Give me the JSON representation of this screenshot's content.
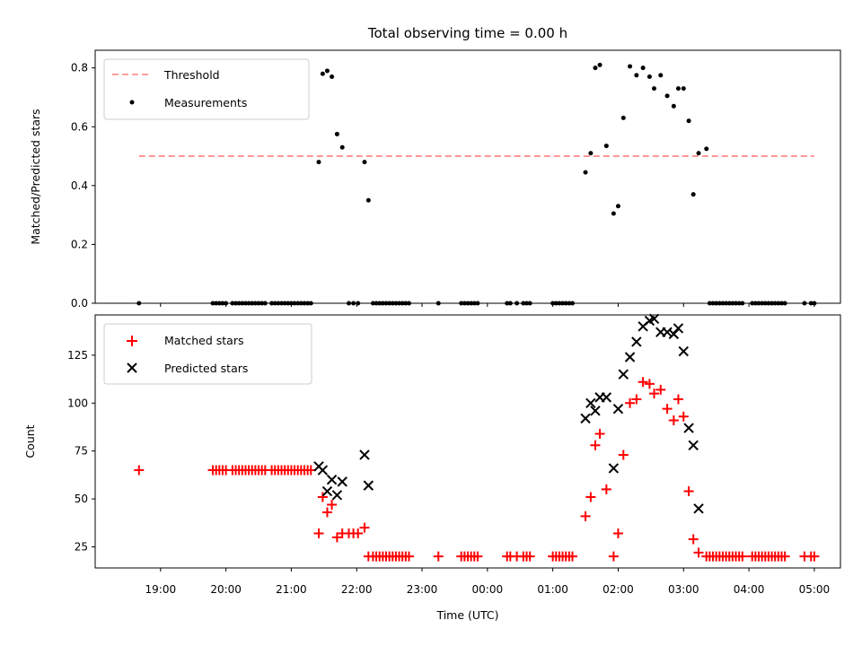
{
  "chart_data": [
    {
      "type": "scatter",
      "title": "Total observing time = 0.00 h",
      "ylabel": "Matched/Predicted stars",
      "xlabel": "",
      "xlim_hours": [
        18.0,
        29.4
      ],
      "ylim": [
        0,
        0.86
      ],
      "yticks": [
        0.0,
        0.2,
        0.4,
        0.6,
        0.8
      ],
      "ytick_labels": [
        "0.0",
        "0.2",
        "0.4",
        "0.6",
        "0.8"
      ],
      "legend_position": "top-left",
      "threshold": {
        "name": "Threshold",
        "y": 0.5,
        "x_range": [
          18.67,
          29.0
        ],
        "color": "#ff7f7f",
        "style": "dashed"
      },
      "series": [
        {
          "name": "Measurements",
          "color": "#000000",
          "marker": "dot",
          "x": [
            18.67,
            19.8,
            19.85,
            19.9,
            19.95,
            20.0,
            20.1,
            20.15,
            20.2,
            20.25,
            20.3,
            20.35,
            20.4,
            20.45,
            20.5,
            20.55,
            20.6,
            20.7,
            20.75,
            20.8,
            20.85,
            20.9,
            20.95,
            21.0,
            21.05,
            21.1,
            21.15,
            21.2,
            21.25,
            21.3,
            21.42,
            21.48,
            21.55,
            21.62,
            21.7,
            21.78,
            21.88,
            21.95,
            22.02,
            22.12,
            22.18,
            22.25,
            22.3,
            22.35,
            22.4,
            22.45,
            22.5,
            22.55,
            22.6,
            22.65,
            22.7,
            22.75,
            22.8,
            23.25,
            23.6,
            23.65,
            23.7,
            23.75,
            23.8,
            23.85,
            24.3,
            24.35,
            24.45,
            24.55,
            24.6,
            24.65,
            25.0,
            25.05,
            25.1,
            25.15,
            25.2,
            25.25,
            25.3,
            25.5,
            25.58,
            25.65,
            25.72,
            25.82,
            25.93,
            26.0,
            26.08,
            26.18,
            26.28,
            26.38,
            26.48,
            26.55,
            26.65,
            26.75,
            26.85,
            26.92,
            27.0,
            27.08,
            27.15,
            27.23,
            27.35,
            27.4,
            27.45,
            27.5,
            27.55,
            27.6,
            27.65,
            27.7,
            27.75,
            27.8,
            27.85,
            27.9,
            28.05,
            28.1,
            28.15,
            28.2,
            28.25,
            28.3,
            28.35,
            28.4,
            28.45,
            28.5,
            28.55,
            28.85,
            28.95,
            29.0
          ],
          "y": [
            0,
            0,
            0,
            0,
            0,
            0,
            0,
            0,
            0,
            0,
            0,
            0,
            0,
            0,
            0,
            0,
            0,
            0,
            0,
            0,
            0,
            0,
            0,
            0,
            0,
            0,
            0,
            0,
            0,
            0,
            0.48,
            0.78,
            0.79,
            0.77,
            0.575,
            0.53,
            0,
            0,
            0,
            0.48,
            0.35,
            0,
            0,
            0,
            0,
            0,
            0,
            0,
            0,
            0,
            0,
            0,
            0,
            0,
            0,
            0,
            0,
            0,
            0,
            0,
            0,
            0,
            0,
            0,
            0,
            0,
            0,
            0,
            0,
            0,
            0,
            0,
            0,
            0.445,
            0.51,
            0.8,
            0.81,
            0.535,
            0.305,
            0.33,
            0.63,
            0.805,
            0.775,
            0.8,
            0.77,
            0.73,
            0.775,
            0.705,
            0.67,
            0.73,
            0.73,
            0.62,
            0.37,
            0.51,
            0.525,
            0,
            0,
            0,
            0,
            0,
            0,
            0,
            0,
            0,
            0,
            0,
            0,
            0,
            0,
            0,
            0,
            0,
            0,
            0,
            0,
            0,
            0,
            0,
            0,
            0
          ]
        }
      ]
    },
    {
      "type": "scatter",
      "title": "",
      "ylabel": "Count",
      "xlabel": "Time (UTC)",
      "xlim_hours": [
        18.0,
        29.4
      ],
      "ylim": [
        14,
        146
      ],
      "yticks": [
        25,
        50,
        75,
        100,
        125
      ],
      "ytick_labels": [
        "25",
        "50",
        "75",
        "100",
        "125"
      ],
      "xticks_hours": [
        19,
        20,
        21,
        22,
        23,
        24,
        25,
        26,
        27,
        28,
        29
      ],
      "xtick_labels": [
        "19:00",
        "20:00",
        "21:00",
        "22:00",
        "23:00",
        "00:00",
        "01:00",
        "02:00",
        "03:00",
        "04:00",
        "05:00"
      ],
      "legend_position": "top-left",
      "series": [
        {
          "name": "Matched stars",
          "color": "#ff0000",
          "marker": "plus",
          "x": [
            18.67,
            19.8,
            19.85,
            19.9,
            19.95,
            20.0,
            20.1,
            20.15,
            20.2,
            20.25,
            20.3,
            20.35,
            20.4,
            20.45,
            20.5,
            20.55,
            20.6,
            20.7,
            20.75,
            20.8,
            20.85,
            20.9,
            20.95,
            21.0,
            21.05,
            21.1,
            21.15,
            21.2,
            21.25,
            21.3,
            21.42,
            21.48,
            21.55,
            21.62,
            21.7,
            21.78,
            21.88,
            21.95,
            22.02,
            22.12,
            22.18,
            22.25,
            22.3,
            22.35,
            22.4,
            22.45,
            22.5,
            22.55,
            22.6,
            22.65,
            22.7,
            22.75,
            22.8,
            23.25,
            23.6,
            23.65,
            23.7,
            23.75,
            23.8,
            23.85,
            24.3,
            24.35,
            24.45,
            24.55,
            24.6,
            24.65,
            25.0,
            25.05,
            25.1,
            25.15,
            25.2,
            25.25,
            25.3,
            25.5,
            25.58,
            25.65,
            25.72,
            25.82,
            25.93,
            26.0,
            26.08,
            26.18,
            26.28,
            26.38,
            26.48,
            26.55,
            26.65,
            26.75,
            26.85,
            26.92,
            27.0,
            27.08,
            27.15,
            27.23,
            27.35,
            27.4,
            27.45,
            27.5,
            27.55,
            27.6,
            27.65,
            27.7,
            27.75,
            27.8,
            27.85,
            27.9,
            28.05,
            28.1,
            28.15,
            28.2,
            28.25,
            28.3,
            28.35,
            28.4,
            28.45,
            28.5,
            28.55,
            28.85,
            28.95,
            29.0
          ],
          "y": [
            65,
            65,
            65,
            65,
            65,
            65,
            65,
            65,
            65,
            65,
            65,
            65,
            65,
            65,
            65,
            65,
            65,
            65,
            65,
            65,
            65,
            65,
            65,
            65,
            65,
            65,
            65,
            65,
            65,
            65,
            32,
            51,
            43,
            47,
            30,
            32,
            32,
            32,
            32,
            35,
            20,
            20,
            20,
            20,
            20,
            20,
            20,
            20,
            20,
            20,
            20,
            20,
            20,
            20,
            20,
            20,
            20,
            20,
            20,
            20,
            20,
            20,
            20,
            20,
            20,
            20,
            20,
            20,
            20,
            20,
            20,
            20,
            20,
            41,
            51,
            78,
            84,
            55,
            20,
            32,
            73,
            100,
            102,
            111,
            110,
            105,
            107,
            97,
            91,
            102,
            93,
            54,
            29,
            22,
            20,
            20,
            20,
            20,
            20,
            20,
            20,
            20,
            20,
            20,
            20,
            20,
            20,
            20,
            20,
            20,
            20,
            20,
            20,
            20,
            20,
            20,
            20,
            20,
            20,
            20
          ]
        },
        {
          "name": "Predicted stars",
          "color": "#000000",
          "marker": "cross",
          "x": [
            21.42,
            21.48,
            21.55,
            21.62,
            21.7,
            21.78,
            22.12,
            22.18,
            25.5,
            25.58,
            25.65,
            25.72,
            25.82,
            25.93,
            26.0,
            26.08,
            26.18,
            26.28,
            26.38,
            26.48,
            26.55,
            26.65,
            26.75,
            26.85,
            26.92,
            27.0,
            27.08,
            27.15,
            27.23
          ],
          "y": [
            67,
            65,
            54,
            60,
            52,
            59,
            73,
            57,
            92,
            100,
            96,
            103,
            103,
            66,
            97,
            115,
            124,
            132,
            140,
            143,
            144,
            137,
            137,
            136,
            139,
            127,
            87,
            78,
            45
          ]
        }
      ]
    }
  ]
}
